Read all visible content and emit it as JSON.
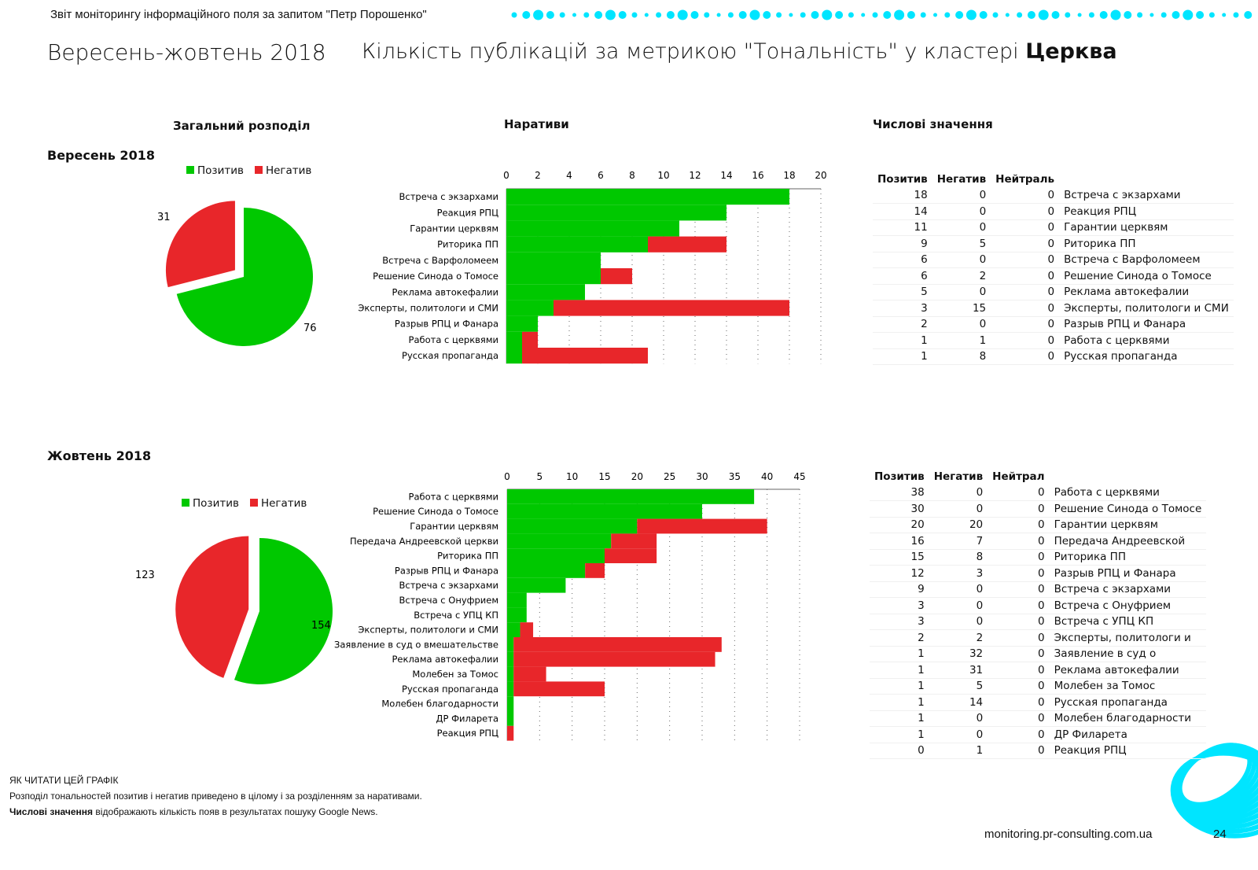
{
  "header": {
    "report_title": "Звіт моніторингу інформаційного поля за запитом \"Петр Порошенко\"",
    "period": "Вересень-жовтень 2018",
    "main_title": "Кількість публікацій за метрикою \"Тональність\" у кластері",
    "cluster": "Церква"
  },
  "sections": {
    "overall": "Загальний розподіл",
    "narratives": "Наративи",
    "numeric": "Числові значення"
  },
  "colors": {
    "positive": "#00c800",
    "negative": "#e8262a",
    "accent": "#00e5ff"
  },
  "legend": {
    "positive": "Позитив",
    "negative": "Негатив"
  },
  "chart_data": [
    {
      "type": "pie",
      "title": "Вересень 2018",
      "labels": [
        "Позитив",
        "Негатив"
      ],
      "values": [
        76,
        31
      ]
    },
    {
      "type": "bar",
      "stacked": true,
      "orientation": "horizontal",
      "title": "Вересень 2018 — Наративи",
      "xlim": [
        0,
        20
      ],
      "xticks": [
        0,
        2,
        4,
        6,
        8,
        10,
        12,
        14,
        16,
        18,
        20
      ],
      "categories": [
        "Встреча с экзархами",
        "Реакция РПЦ",
        "Гарантии церквям",
        "Риторика ПП",
        "Встреча с Варфоломеем",
        "Решение Синода о Томосе",
        "Реклама автокефалии",
        "Эксперты, политологи и СМИ",
        "Разрыв РПЦ и Фанара",
        "Работа с церквями",
        "Русская пропаганда"
      ],
      "series": [
        {
          "name": "Позитив",
          "values": [
            18,
            14,
            11,
            9,
            6,
            6,
            5,
            3,
            2,
            1,
            1
          ]
        },
        {
          "name": "Негатив",
          "values": [
            0,
            0,
            0,
            5,
            0,
            2,
            0,
            15,
            0,
            1,
            8
          ]
        }
      ]
    },
    {
      "type": "pie",
      "title": "Жовтень 2018",
      "labels": [
        "Позитив",
        "Негатив"
      ],
      "values": [
        154,
        123
      ]
    },
    {
      "type": "bar",
      "stacked": true,
      "orientation": "horizontal",
      "title": "Жовтень 2018 — Наративи",
      "xlim": [
        0,
        45
      ],
      "xticks": [
        0,
        5,
        10,
        15,
        20,
        25,
        30,
        35,
        40,
        45
      ],
      "categories": [
        "Работа с церквями",
        "Решение Синода о Томосе",
        "Гарантии церквям",
        "Передача Андреевской церкви",
        "Риторика ПП",
        "Разрыв РПЦ и Фанара",
        "Встреча с экзархами",
        "Встреча с Онуфрием",
        "Встреча с УПЦ КП",
        "Эксперты, политологи и СМИ",
        "Заявление в суд о вмешательстве",
        "Реклама автокефалии",
        "Молебен за Томос",
        "Русская пропаганда",
        "Молебен благодарности",
        "ДР Филарета",
        "Реакция РПЦ"
      ],
      "series": [
        {
          "name": "Позитив",
          "values": [
            38,
            30,
            20,
            16,
            15,
            12,
            9,
            3,
            3,
            2,
            1,
            1,
            1,
            1,
            1,
            1,
            0
          ]
        },
        {
          "name": "Негатив",
          "values": [
            0,
            0,
            20,
            7,
            8,
            3,
            0,
            0,
            0,
            2,
            32,
            31,
            5,
            14,
            0,
            0,
            1
          ]
        }
      ]
    }
  ],
  "tables": [
    {
      "month": "Вересень 2018",
      "headers": [
        "Позитив",
        "Негатив",
        "Нейтраль",
        ""
      ],
      "rows": [
        [
          18,
          0,
          0,
          "Встреча с экзархами"
        ],
        [
          14,
          0,
          0,
          "Реакция РПЦ"
        ],
        [
          11,
          0,
          0,
          "Гарантии церквям"
        ],
        [
          9,
          5,
          0,
          "Риторика ПП"
        ],
        [
          6,
          0,
          0,
          "Встреча с Варфоломеем"
        ],
        [
          6,
          2,
          0,
          "Решение Синода о Томосе"
        ],
        [
          5,
          0,
          0,
          "Реклама автокефалии"
        ],
        [
          3,
          15,
          0,
          "Эксперты, политологи и СМИ"
        ],
        [
          2,
          0,
          0,
          "Разрыв РПЦ и Фанара"
        ],
        [
          1,
          1,
          0,
          "Работа с церквями"
        ],
        [
          1,
          8,
          0,
          "Русская пропаганда"
        ]
      ]
    },
    {
      "month": "Жовтень 2018",
      "headers": [
        "Позитив",
        "Негатив",
        "Нейтрал",
        ""
      ],
      "rows": [
        [
          38,
          0,
          0,
          "Работа с церквями"
        ],
        [
          30,
          0,
          0,
          "Решение Синода о Томосе"
        ],
        [
          20,
          20,
          0,
          "Гарантии церквям"
        ],
        [
          16,
          7,
          0,
          "Передача Андреевской"
        ],
        [
          15,
          8,
          0,
          "Риторика ПП"
        ],
        [
          12,
          3,
          0,
          "Разрыв РПЦ и Фанара"
        ],
        [
          9,
          0,
          0,
          "Встреча с экзархами"
        ],
        [
          3,
          0,
          0,
          "Встреча с Онуфрием"
        ],
        [
          3,
          0,
          0,
          "Встреча с УПЦ КП"
        ],
        [
          2,
          2,
          0,
          "Эксперты, политологи и"
        ],
        [
          1,
          32,
          0,
          "Заявление в суд о"
        ],
        [
          1,
          31,
          0,
          "Реклама автокефалии"
        ],
        [
          1,
          5,
          0,
          "Молебен за Томос"
        ],
        [
          1,
          14,
          0,
          "Русская пропаганда"
        ],
        [
          1,
          0,
          0,
          "Молебен благодарности"
        ],
        [
          1,
          0,
          0,
          "ДР Филарета"
        ],
        [
          0,
          1,
          0,
          "Реакция РПЦ"
        ]
      ]
    }
  ],
  "footnote": {
    "heading": "ЯК ЧИТАТИ ЦЕЙ ГРАФІК",
    "line1": "Розподіл тональностей позитив і негатив приведено в цілому і за розділенням за наративами.",
    "line2_bold": "Числові значення",
    "line2_rest": " відображають кількість появ в результатах пошуку Google News."
  },
  "footer": {
    "site": "monitoring.pr-consulting.com.ua",
    "page": "24"
  }
}
